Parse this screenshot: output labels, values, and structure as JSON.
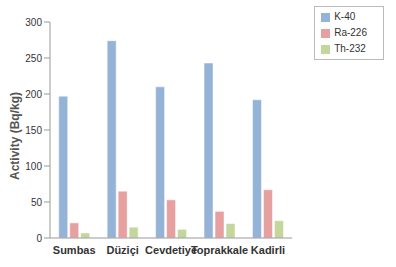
{
  "chart_data": {
    "type": "bar",
    "categories": [
      "Sumbas",
      "Düziçi",
      "Cevdetiye",
      "Toprakkale",
      "Kadirli"
    ],
    "series": [
      {
        "name": "K-40",
        "color": "#95b3d7",
        "values": [
          197,
          274,
          210,
          243,
          192
        ]
      },
      {
        "name": "Ra-226",
        "color": "#e6a0a0",
        "values": [
          21,
          65,
          53,
          37,
          67
        ]
      },
      {
        "name": "Th-232",
        "color": "#c3d69b",
        "values": [
          7,
          15,
          12,
          20,
          24
        ]
      }
    ],
    "y_label": "Activity (Bq/kg)",
    "ylim": [
      0,
      300
    ],
    "yticks": [
      0,
      50,
      100,
      150,
      200,
      250,
      300
    ],
    "grid": false,
    "legend": "upper right"
  }
}
